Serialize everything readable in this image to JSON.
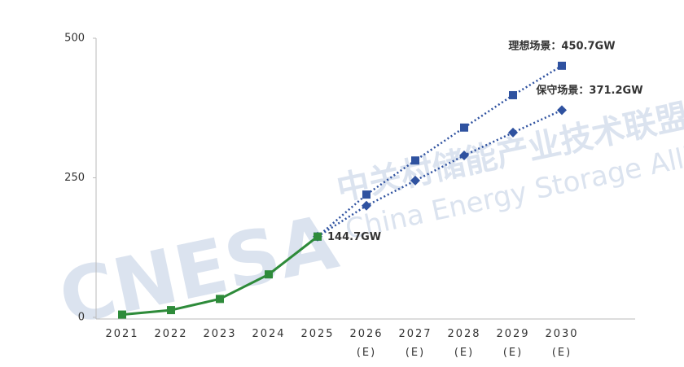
{
  "chart_data": {
    "type": "line",
    "categories": [
      "2021",
      "2022",
      "2023",
      "2024",
      "2025",
      "2026 (E)",
      "2027 (E)",
      "2028 (E)",
      "2029 (E)",
      "2030 (E)"
    ],
    "series": [
      {
        "color": "#2e8b3a",
        "marker": "square",
        "dash": false,
        "values": [
          5,
          13,
          33,
          77,
          144.7,
          null,
          null,
          null,
          null,
          null
        ],
        "value_labels": [
          null,
          null,
          null,
          null,
          "144.7GW",
          null,
          null,
          null,
          null,
          null
        ]
      },
      {
        "color": "#2f52a0",
        "marker": "square",
        "dash": true,
        "values": [
          null,
          null,
          null,
          null,
          144.7,
          220,
          281,
          340,
          398,
          450.7
        ],
        "value_labels": [
          null,
          null,
          null,
          null,
          null,
          null,
          null,
          null,
          null,
          "理想场景：450.7GW"
        ]
      },
      {
        "color": "#2f52a0",
        "marker": "diamond",
        "dash": true,
        "values": [
          null,
          null,
          null,
          null,
          144.7,
          200,
          245,
          290,
          331,
          371.2
        ],
        "value_labels": [
          null,
          null,
          null,
          null,
          null,
          null,
          null,
          null,
          null,
          "保守场景：371.2GW"
        ]
      }
    ],
    "ylim": [
      0,
      500
    ],
    "yticks": [
      0,
      250,
      500
    ],
    "grid": false,
    "watermark": {
      "logo": "CNESA",
      "name_cn": "中关村储能产业技术联盟",
      "name_en": "China Energy Storage Alliance"
    }
  }
}
